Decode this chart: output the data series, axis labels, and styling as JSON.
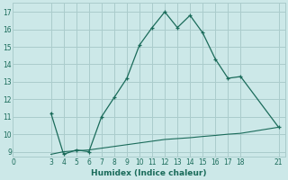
{
  "xlabel": "Humidex (Indice chaleur)",
  "bg_color": "#cce8e8",
  "grid_color": "#aacccc",
  "line_color": "#1a6b5a",
  "line1_x": [
    3,
    4,
    5,
    6,
    7,
    8,
    9,
    10,
    11,
    12,
    13,
    14,
    15,
    16,
    17,
    18,
    21
  ],
  "line1_y": [
    11.2,
    8.85,
    9.1,
    9.0,
    11.0,
    12.1,
    13.2,
    15.1,
    16.1,
    17.0,
    16.1,
    16.8,
    15.8,
    14.3,
    13.2,
    13.3,
    10.4
  ],
  "line2_x": [
    3,
    4,
    5,
    6,
    7,
    8,
    9,
    10,
    11,
    12,
    13,
    14,
    15,
    16,
    17,
    18,
    21
  ],
  "line2_y": [
    8.85,
    9.0,
    9.05,
    9.1,
    9.2,
    9.3,
    9.4,
    9.5,
    9.6,
    9.7,
    9.75,
    9.8,
    9.87,
    9.93,
    10.0,
    10.05,
    10.4
  ],
  "xlim": [
    0,
    21.5
  ],
  "ylim": [
    8.7,
    17.5
  ],
  "xticks": [
    0,
    3,
    4,
    5,
    6,
    7,
    8,
    9,
    10,
    11,
    12,
    13,
    14,
    15,
    16,
    17,
    18,
    21
  ],
  "yticks": [
    9,
    10,
    11,
    12,
    13,
    14,
    15,
    16,
    17
  ],
  "tick_fontsize": 5.5,
  "xlabel_fontsize": 6.5
}
